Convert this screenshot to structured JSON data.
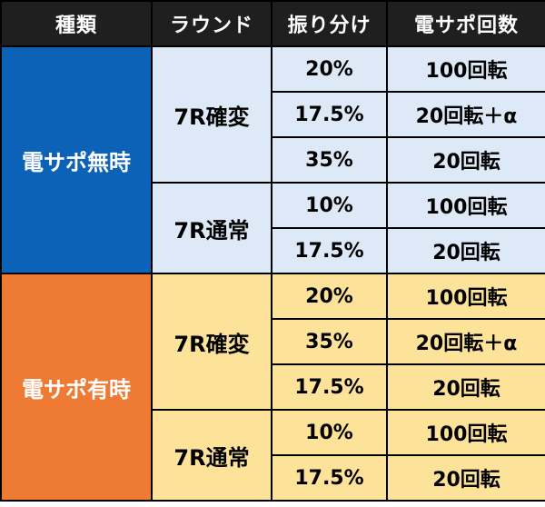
{
  "headers": [
    "種類",
    "ラウンド",
    "振り分け",
    "電サポ回数"
  ],
  "groups": [
    {
      "kind": "電サポ無時",
      "color": "#0b62b7",
      "cell_color": "#dde9f6",
      "rounds": [
        {
          "round": "7R確変",
          "rows": [
            {
              "share": "20%",
              "support": "100回転"
            },
            {
              "share": "17.5%",
              "support": "20回転＋α"
            },
            {
              "share": "35%",
              "support": "20回転"
            }
          ]
        },
        {
          "round": "7R通常",
          "rows": [
            {
              "share": "10%",
              "support": "100回転"
            },
            {
              "share": "17.5%",
              "support": "20回転"
            }
          ]
        }
      ]
    },
    {
      "kind": "電サポ有時",
      "color": "#ee7a33",
      "cell_color": "#fde39a",
      "rounds": [
        {
          "round": "7R確変",
          "rows": [
            {
              "share": "20%",
              "support": "100回転"
            },
            {
              "share": "35%",
              "support": "20回転＋α"
            },
            {
              "share": "17.5%",
              "support": "20回転"
            }
          ]
        },
        {
          "round": "7R通常",
          "rows": [
            {
              "share": "10%",
              "support": "100回転"
            },
            {
              "share": "17.5%",
              "support": "20回転"
            }
          ]
        }
      ]
    }
  ]
}
